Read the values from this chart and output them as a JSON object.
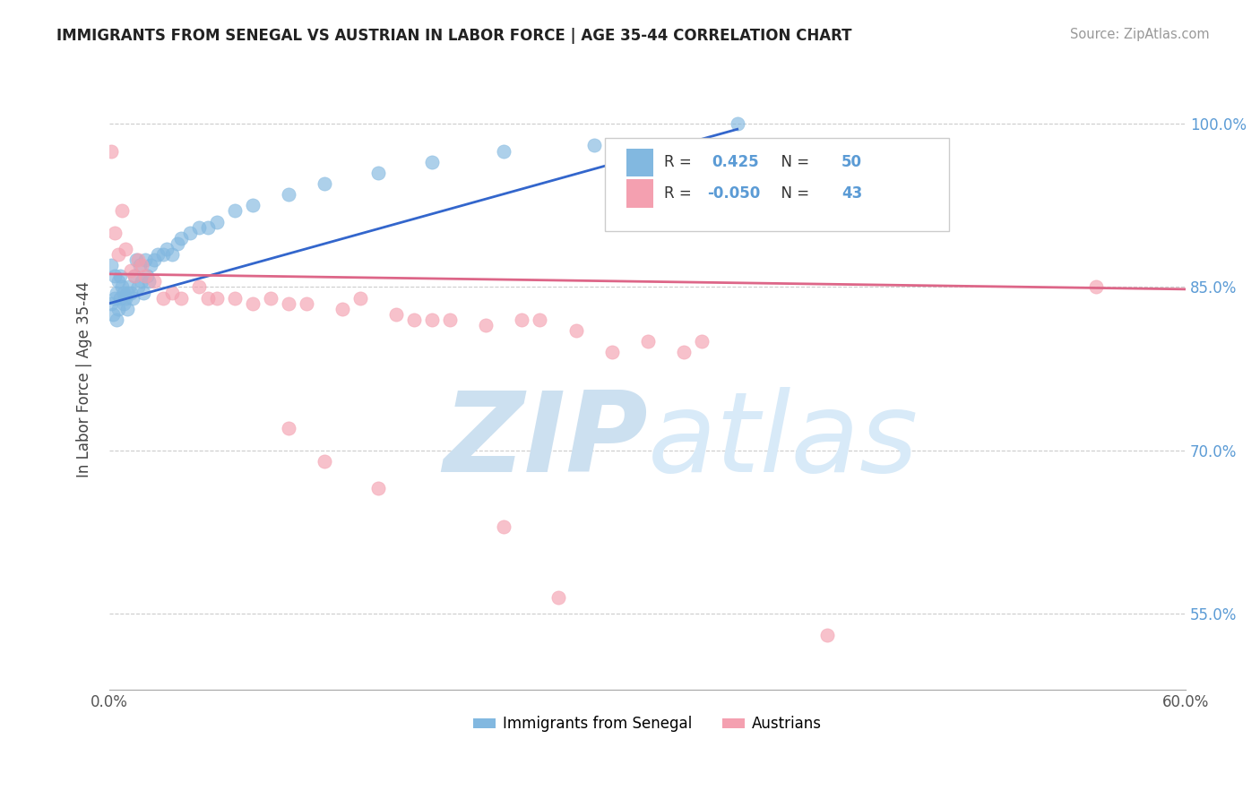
{
  "title": "IMMIGRANTS FROM SENEGAL VS AUSTRIAN IN LABOR FORCE | AGE 35-44 CORRELATION CHART",
  "source": "Source: ZipAtlas.com",
  "ylabel": "In Labor Force | Age 35-44",
  "xlim": [
    0.0,
    0.6
  ],
  "ylim": [
    0.48,
    1.05
  ],
  "xticks": [
    0.0,
    0.1,
    0.2,
    0.3,
    0.4,
    0.5,
    0.6
  ],
  "xtick_labels": [
    "0.0%",
    "",
    "",
    "",
    "",
    "",
    "60.0%"
  ],
  "yticks": [
    0.55,
    0.7,
    0.85,
    1.0
  ],
  "ytick_labels": [
    "55.0%",
    "70.0%",
    "85.0%",
    "100.0%"
  ],
  "blue_R": 0.425,
  "blue_N": 50,
  "pink_R": -0.05,
  "pink_N": 43,
  "blue_color": "#82b8e0",
  "pink_color": "#f4a0b0",
  "blue_line_color": "#3366cc",
  "pink_line_color": "#dd6688",
  "watermark_zip": "ZIP",
  "watermark_atlas": "atlas",
  "watermark_color": "#cce0f0",
  "legend_label_blue": "Immigrants from Senegal",
  "legend_label_pink": "Austrians",
  "blue_scatter_x": [
    0.001,
    0.001,
    0.002,
    0.003,
    0.003,
    0.004,
    0.004,
    0.005,
    0.005,
    0.006,
    0.006,
    0.007,
    0.008,
    0.008,
    0.009,
    0.01,
    0.01,
    0.011,
    0.012,
    0.013,
    0.014,
    0.015,
    0.016,
    0.017,
    0.018,
    0.019,
    0.02,
    0.021,
    0.022,
    0.023,
    0.025,
    0.027,
    0.03,
    0.032,
    0.035,
    0.038,
    0.04,
    0.045,
    0.05,
    0.055,
    0.06,
    0.07,
    0.08,
    0.1,
    0.12,
    0.15,
    0.18,
    0.22,
    0.27,
    0.35
  ],
  "blue_scatter_y": [
    0.835,
    0.87,
    0.825,
    0.84,
    0.86,
    0.82,
    0.845,
    0.83,
    0.855,
    0.84,
    0.86,
    0.85,
    0.845,
    0.835,
    0.84,
    0.845,
    0.83,
    0.85,
    0.845,
    0.84,
    0.86,
    0.875,
    0.85,
    0.87,
    0.855,
    0.845,
    0.875,
    0.86,
    0.855,
    0.87,
    0.875,
    0.88,
    0.88,
    0.885,
    0.88,
    0.89,
    0.895,
    0.9,
    0.905,
    0.905,
    0.91,
    0.92,
    0.925,
    0.935,
    0.945,
    0.955,
    0.965,
    0.975,
    0.98,
    1.0
  ],
  "pink_scatter_x": [
    0.001,
    0.003,
    0.005,
    0.007,
    0.009,
    0.012,
    0.014,
    0.016,
    0.018,
    0.02,
    0.025,
    0.03,
    0.035,
    0.04,
    0.05,
    0.055,
    0.06,
    0.07,
    0.08,
    0.09,
    0.1,
    0.11,
    0.13,
    0.14,
    0.16,
    0.17,
    0.18,
    0.19,
    0.21,
    0.23,
    0.24,
    0.26,
    0.28,
    0.3,
    0.32,
    0.33,
    0.55,
    0.1,
    0.12,
    0.15,
    0.22,
    0.4,
    0.25
  ],
  "pink_scatter_y": [
    0.975,
    0.9,
    0.88,
    0.92,
    0.885,
    0.865,
    0.86,
    0.875,
    0.87,
    0.86,
    0.855,
    0.84,
    0.845,
    0.84,
    0.85,
    0.84,
    0.84,
    0.84,
    0.835,
    0.84,
    0.835,
    0.835,
    0.83,
    0.84,
    0.825,
    0.82,
    0.82,
    0.82,
    0.815,
    0.82,
    0.82,
    0.81,
    0.79,
    0.8,
    0.79,
    0.8,
    0.85,
    0.72,
    0.69,
    0.665,
    0.63,
    0.53,
    0.565
  ],
  "blue_trendline_x": [
    0.0,
    0.35
  ],
  "blue_trendline_y": [
    0.835,
    0.995
  ],
  "pink_trendline_x": [
    0.0,
    0.6
  ],
  "pink_trendline_y": [
    0.862,
    0.848
  ]
}
